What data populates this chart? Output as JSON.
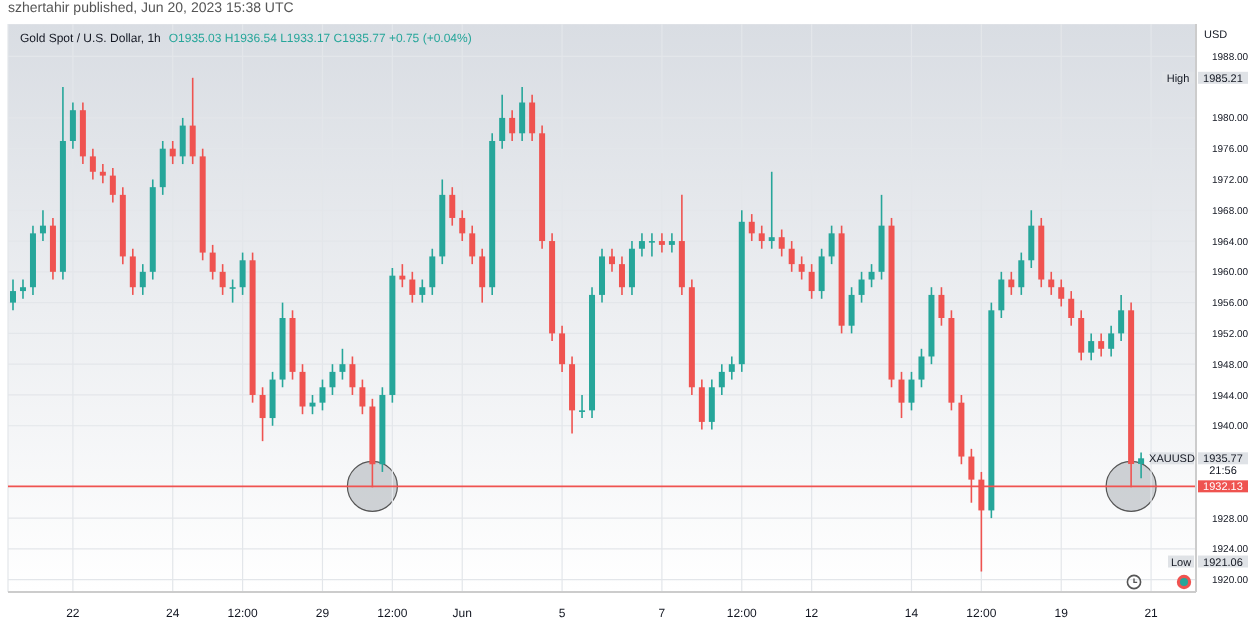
{
  "chart_data": {
    "type": "candlestick",
    "title": "Gold Spot / U.S. Dollar, 1h",
    "subtitle": "O1935.03 H1936.54 L1933.17 C1935.77 +0.75 (+0.04%)",
    "categories": [
      null,
      null,
      null,
      null,
      null,
      null,
      "22",
      null,
      null,
      null,
      null,
      null,
      null,
      null,
      null,
      null,
      "24",
      null,
      null,
      null,
      null,
      null,
      null,
      "12:00",
      null,
      null,
      null,
      null,
      null,
      null,
      null,
      "29",
      null,
      null,
      null,
      null,
      null,
      null,
      "12:00",
      null,
      null,
      null,
      null,
      null,
      null,
      "Jun",
      null,
      null,
      null,
      null,
      null,
      null,
      null,
      null,
      null,
      "5",
      null,
      null,
      null,
      null,
      null,
      null,
      null,
      null,
      null,
      "7",
      null,
      null,
      null,
      null,
      null,
      null,
      null,
      "12:00",
      null,
      null,
      null,
      null,
      null,
      null,
      "12",
      null,
      null,
      null,
      null,
      null,
      null,
      null,
      null,
      null,
      "14",
      null,
      null,
      null,
      null,
      null,
      null,
      "12:00",
      null,
      null,
      null,
      null,
      null,
      null,
      null,
      "19",
      null,
      null,
      null,
      null,
      null,
      null,
      null,
      null,
      "21",
      null,
      null,
      null,
      null
    ],
    "ohlc": [
      [
        1956,
        1959,
        1955,
        1957.5
      ],
      [
        1957.5,
        1959,
        1956.5,
        1958
      ],
      [
        1958,
        1966,
        1957,
        1965
      ],
      [
        1965,
        1968,
        1964,
        1966
      ],
      [
        1966,
        1967,
        1959,
        1960
      ],
      [
        1960,
        1984,
        1959,
        1977
      ],
      [
        1977,
        1982,
        1976,
        1981
      ],
      [
        1981,
        1982,
        1974,
        1975
      ],
      [
        1975,
        1976,
        1972,
        1973
      ],
      [
        1973,
        1974,
        1971.5,
        1972.5
      ],
      [
        1972.5,
        1973.5,
        1969,
        1970
      ],
      [
        1970,
        1971,
        1961,
        1962
      ],
      [
        1962,
        1963,
        1957,
        1958
      ],
      [
        1958,
        1961,
        1957,
        1960
      ],
      [
        1960,
        1972,
        1959,
        1971
      ],
      [
        1971,
        1977,
        1970,
        1976
      ],
      [
        1976,
        1977,
        1974,
        1975
      ],
      [
        1975,
        1980,
        1974,
        1979
      ],
      [
        1979,
        1985.21,
        1974,
        1975
      ],
      [
        1975,
        1976,
        1961.5,
        1962.5
      ],
      [
        1962.5,
        1963.5,
        1959,
        1960
      ],
      [
        1960,
        1961,
        1957,
        1958
      ],
      [
        1958,
        1959,
        1956,
        1958
      ],
      [
        1958,
        1962.5,
        1957,
        1961.5
      ],
      [
        1961.5,
        1962.5,
        1943,
        1944
      ],
      [
        1944,
        1945,
        1938,
        1941
      ],
      [
        1941,
        1947,
        1940,
        1946
      ],
      [
        1946,
        1956,
        1945,
        1954
      ],
      [
        1954,
        1955,
        1946,
        1947
      ],
      [
        1947,
        1948,
        1941.5,
        1942.5
      ],
      [
        1942.5,
        1944,
        1941.5,
        1943
      ],
      [
        1943,
        1946,
        1942,
        1945
      ],
      [
        1945,
        1948,
        1944,
        1947
      ],
      [
        1947,
        1950,
        1946,
        1948
      ],
      [
        1948,
        1949,
        1944,
        1945
      ],
      [
        1945,
        1946,
        1941.5,
        1942.5
      ],
      [
        1942.5,
        1943.5,
        1932,
        1935
      ],
      [
        1935,
        1945,
        1934,
        1944
      ],
      [
        1944,
        1960.5,
        1943,
        1959.5
      ],
      [
        1959.5,
        1961,
        1958,
        1959
      ],
      [
        1959,
        1960,
        1956,
        1957
      ],
      [
        1957,
        1959,
        1956,
        1958
      ],
      [
        1958,
        1963,
        1957,
        1962
      ],
      [
        1962,
        1972,
        1961,
        1970
      ],
      [
        1970,
        1971,
        1966,
        1967
      ],
      [
        1967,
        1968,
        1964,
        1965
      ],
      [
        1965,
        1966,
        1961,
        1962
      ],
      [
        1962,
        1963,
        1956,
        1958
      ],
      [
        1958,
        1978,
        1957,
        1977
      ],
      [
        1977,
        1983,
        1976,
        1980
      ],
      [
        1980,
        1981,
        1977,
        1978
      ],
      [
        1978,
        1984,
        1977,
        1982
      ],
      [
        1982,
        1983,
        1977,
        1978
      ],
      [
        1978,
        1979,
        1963,
        1964
      ],
      [
        1964,
        1965,
        1951,
        1952
      ],
      [
        1952,
        1953,
        1947,
        1948
      ],
      [
        1948,
        1949,
        1939,
        1942
      ],
      [
        1942,
        1944,
        1941,
        1942
      ],
      [
        1942,
        1958,
        1941,
        1957
      ],
      [
        1957,
        1963,
        1956,
        1962
      ],
      [
        1962,
        1963,
        1960,
        1961
      ],
      [
        1961,
        1962,
        1957,
        1958
      ],
      [
        1958,
        1964,
        1957,
        1963
      ],
      [
        1963,
        1965,
        1962,
        1964
      ],
      [
        1964,
        1965,
        1962,
        1964
      ],
      [
        1964,
        1965,
        1962.5,
        1963.5
      ],
      [
        1963.5,
        1965,
        1962.5,
        1964
      ],
      [
        1964,
        1970,
        1957,
        1958
      ],
      [
        1958,
        1959,
        1944,
        1945
      ],
      [
        1945,
        1946,
        1939.5,
        1940.5
      ],
      [
        1940.5,
        1946,
        1939.5,
        1945
      ],
      [
        1945,
        1948,
        1944,
        1947
      ],
      [
        1947,
        1949,
        1946,
        1948
      ],
      [
        1948,
        1968,
        1947,
        1966.5
      ],
      [
        1966.5,
        1967.5,
        1964,
        1965
      ],
      [
        1965,
        1966,
        1963,
        1964
      ],
      [
        1964,
        1973,
        1963,
        1964.5
      ],
      [
        1964.5,
        1965.5,
        1962,
        1963
      ],
      [
        1963,
        1964,
        1960,
        1961
      ],
      [
        1961,
        1962,
        1959,
        1960
      ],
      [
        1960,
        1961,
        1956.5,
        1957.5
      ],
      [
        1957.5,
        1963,
        1956.5,
        1962
      ],
      [
        1962,
        1966,
        1961,
        1965
      ],
      [
        1965,
        1966,
        1952,
        1953
      ],
      [
        1953,
        1958,
        1952,
        1957
      ],
      [
        1957,
        1960,
        1956,
        1959
      ],
      [
        1959,
        1961,
        1958,
        1960
      ],
      [
        1960,
        1970,
        1959,
        1966
      ],
      [
        1966,
        1967,
        1945,
        1946
      ],
      [
        1946,
        1947,
        1941,
        1943
      ],
      [
        1943,
        1947,
        1942,
        1946
      ],
      [
        1946,
        1950,
        1945,
        1949
      ],
      [
        1949,
        1958,
        1948,
        1957
      ],
      [
        1957,
        1958,
        1953,
        1954
      ],
      [
        1954,
        1955,
        1942,
        1943
      ],
      [
        1943,
        1944,
        1935,
        1936
      ],
      [
        1936,
        1937,
        1930,
        1933
      ],
      [
        1933,
        1934,
        1921.06,
        1929
      ],
      [
        1929,
        1956,
        1928,
        1955
      ],
      [
        1955,
        1960,
        1954,
        1959
      ],
      [
        1959,
        1960,
        1957,
        1958
      ],
      [
        1958,
        1962.5,
        1957,
        1961.5
      ],
      [
        1961.5,
        1968,
        1960.5,
        1966
      ],
      [
        1966,
        1967,
        1958,
        1959
      ],
      [
        1959,
        1960,
        1957,
        1958
      ],
      [
        1958,
        1959,
        1955.5,
        1956.5
      ],
      [
        1956.5,
        1957.5,
        1953,
        1954
      ],
      [
        1954,
        1955,
        1948.5,
        1949.5
      ],
      [
        1949.5,
        1952,
        1948.5,
        1951
      ],
      [
        1951,
        1952,
        1949,
        1950
      ],
      [
        1950,
        1953,
        1949,
        1952
      ],
      [
        1952,
        1957,
        1951,
        1955
      ],
      [
        1955,
        1956,
        1932,
        1935.03
      ],
      [
        1935.03,
        1936.54,
        1933.17,
        1935.77
      ],
      null,
      null,
      null,
      null,
      null
    ],
    "colors": [
      "#26a69a",
      "#26a69a",
      "#26a69a",
      "#26a69a",
      "#ef5350",
      "#26a69a",
      "#26a69a",
      "#ef5350",
      "#ef5350",
      "#ef5350",
      "#ef5350",
      "#ef5350",
      "#ef5350",
      "#26a69a",
      "#26a69a",
      "#26a69a",
      "#ef5350",
      "#26a69a",
      "#ef5350",
      "#ef5350",
      "#ef5350",
      "#ef5350",
      "#26a69a",
      "#26a69a",
      "#ef5350",
      "#ef5350",
      "#26a69a",
      "#26a69a",
      "#ef5350",
      "#ef5350",
      "#26a69a",
      "#26a69a",
      "#26a69a",
      "#26a69a",
      "#ef5350",
      "#ef5350",
      "#ef5350",
      "#26a69a",
      "#26a69a",
      "#ef5350",
      "#ef5350",
      "#26a69a",
      "#26a69a",
      "#26a69a",
      "#ef5350",
      "#ef5350",
      "#ef5350",
      "#ef5350",
      "#26a69a",
      "#26a69a",
      "#ef5350",
      "#26a69a",
      "#ef5350",
      "#ef5350",
      "#ef5350",
      "#ef5350",
      "#ef5350",
      "#26a69a",
      "#26a69a",
      "#26a69a",
      "#ef5350",
      "#ef5350",
      "#26a69a",
      "#26a69a",
      "#26a69a",
      "#ef5350",
      "#26a69a",
      "#ef5350",
      "#ef5350",
      "#ef5350",
      "#26a69a",
      "#26a69a",
      "#26a69a",
      "#26a69a",
      "#ef5350",
      "#ef5350",
      "#26a69a",
      "#ef5350",
      "#ef5350",
      "#ef5350",
      "#ef5350",
      "#26a69a",
      "#26a69a",
      "#ef5350",
      "#26a69a",
      "#26a69a",
      "#26a69a",
      "#26a69a",
      "#ef5350",
      "#ef5350",
      "#26a69a",
      "#26a69a",
      "#26a69a",
      "#ef5350",
      "#ef5350",
      "#ef5350",
      "#ef5350",
      "#ef5350",
      "#26a69a",
      "#26a69a",
      "#ef5350",
      "#26a69a",
      "#26a69a",
      "#ef5350",
      "#ef5350",
      "#ef5350",
      "#ef5350",
      "#ef5350",
      "#26a69a",
      "#ef5350",
      "#26a69a",
      "#26a69a",
      "#ef5350",
      "#26a69a",
      null,
      null,
      null,
      null,
      null
    ],
    "ylim": [
      1918.4,
      1992.2
    ],
    "yticks": [
      {
        "value": 1920,
        "label": "1920.00"
      },
      {
        "value": 1924,
        "label": "1924.00"
      },
      {
        "value": 1928,
        "label": "1928.00"
      },
      {
        "value": 1940,
        "label": "1940.00"
      },
      {
        "value": 1944,
        "label": "1944.00"
      },
      {
        "value": 1948,
        "label": "1948.00"
      },
      {
        "value": 1952,
        "label": "1952.00"
      },
      {
        "value": 1956,
        "label": "1956.00"
      },
      {
        "value": 1960,
        "label": "1960.00"
      },
      {
        "value": 1964,
        "label": "1964.00"
      },
      {
        "value": 1968,
        "label": "1968.00"
      },
      {
        "value": 1972,
        "label": "1972.00"
      },
      {
        "value": 1976,
        "label": "1976.00"
      },
      {
        "value": 1980,
        "label": "1980.00"
      },
      {
        "value": 1988,
        "label": "1988.00"
      }
    ],
    "grid": true,
    "ref_lines": [
      {
        "axis": "y",
        "value": 1932.13,
        "label": "1932.13",
        "color": "#ef5350"
      }
    ],
    "annotations": [
      "szhertahir published, Jun 20, 2023 15:38 UTC",
      "USD",
      "1985.21",
      "High",
      "1921.06",
      "Low",
      "1935.77",
      "XAUUSD",
      "21:56"
    ]
  }
}
